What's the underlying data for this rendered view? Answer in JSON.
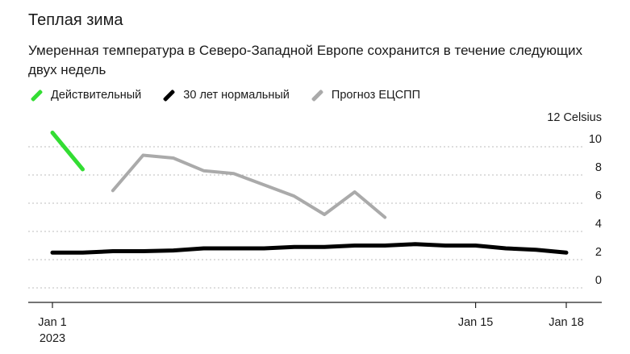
{
  "title": "Теплая зима",
  "subtitle": "Умеренная температура в Северо-Западной Европе сохранится в течение следующих двух недель",
  "legend": [
    {
      "label": "Действительный",
      "color": "#33dd33"
    },
    {
      "label": "30 лет нормальный",
      "color": "#000000"
    },
    {
      "label": "Прогноз ЕЦСПП",
      "color": "#aaaaaa"
    }
  ],
  "chart_data": {
    "type": "line",
    "unit_label": "12 Celsius",
    "ylim": [
      0,
      12
    ],
    "yticks": [
      0,
      2,
      4,
      6,
      8,
      10
    ],
    "xlim": [
      "2023-01-01",
      "2023-01-18"
    ],
    "xticks": [
      {
        "date": "2023-01-01",
        "label": "Jan 1",
        "sublabel": "2023"
      },
      {
        "date": "2023-01-15",
        "label": "Jan 15",
        "sublabel": ""
      },
      {
        "date": "2023-01-18",
        "label": "Jan 18",
        "sublabel": ""
      }
    ],
    "grid": true,
    "legend_placement": "top-left",
    "series": [
      {
        "name": "Действительный",
        "color": "#33dd33",
        "points": [
          {
            "x": "2023-01-01",
            "y": 11.0
          },
          {
            "x": "2023-01-02",
            "y": 8.4
          }
        ]
      },
      {
        "name": "30 лет нормальный",
        "color": "#000000",
        "points": [
          {
            "x": "2023-01-01",
            "y": 2.5
          },
          {
            "x": "2023-01-02",
            "y": 2.5
          },
          {
            "x": "2023-01-03",
            "y": 2.6
          },
          {
            "x": "2023-01-04",
            "y": 2.6
          },
          {
            "x": "2023-01-05",
            "y": 2.65
          },
          {
            "x": "2023-01-06",
            "y": 2.8
          },
          {
            "x": "2023-01-07",
            "y": 2.8
          },
          {
            "x": "2023-01-08",
            "y": 2.8
          },
          {
            "x": "2023-01-09",
            "y": 2.9
          },
          {
            "x": "2023-01-10",
            "y": 2.9
          },
          {
            "x": "2023-01-11",
            "y": 3.0
          },
          {
            "x": "2023-01-12",
            "y": 3.0
          },
          {
            "x": "2023-01-13",
            "y": 3.1
          },
          {
            "x": "2023-01-14",
            "y": 3.0
          },
          {
            "x": "2023-01-15",
            "y": 3.0
          },
          {
            "x": "2023-01-16",
            "y": 2.8
          },
          {
            "x": "2023-01-17",
            "y": 2.7
          },
          {
            "x": "2023-01-18",
            "y": 2.5
          }
        ]
      },
      {
        "name": "Прогноз ЕЦСПП",
        "color": "#aaaaaa",
        "points": [
          {
            "x": "2023-01-03",
            "y": 6.9
          },
          {
            "x": "2023-01-04",
            "y": 9.4
          },
          {
            "x": "2023-01-05",
            "y": 9.2
          },
          {
            "x": "2023-01-06",
            "y": 8.3
          },
          {
            "x": "2023-01-07",
            "y": 8.1
          },
          {
            "x": "2023-01-08",
            "y": 7.3
          },
          {
            "x": "2023-01-09",
            "y": 6.5
          },
          {
            "x": "2023-01-10",
            "y": 5.2
          },
          {
            "x": "2023-01-11",
            "y": 6.8
          },
          {
            "x": "2023-01-12",
            "y": 5.0
          }
        ]
      }
    ]
  }
}
